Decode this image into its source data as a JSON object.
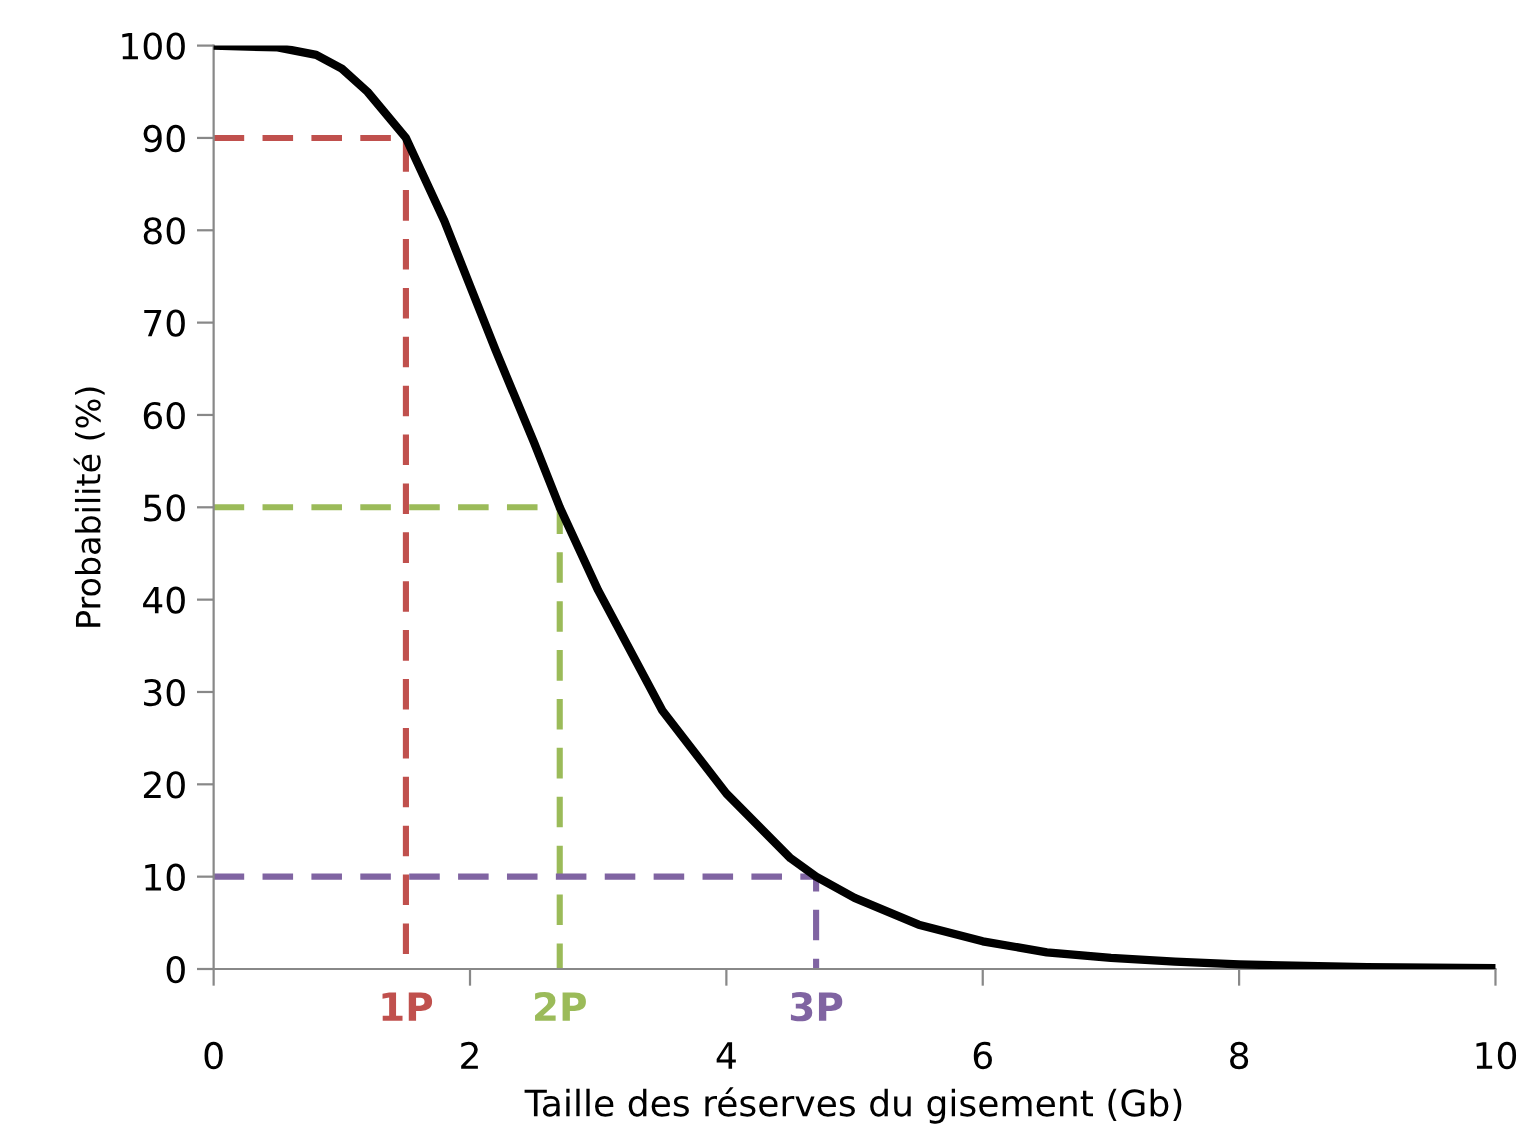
{
  "chart_data": {
    "type": "line",
    "xlabel": "Taille des réserves du gisement (Gb)",
    "ylabel": "Probabilité (%)",
    "xlim": [
      0,
      10
    ],
    "xticks": [
      0,
      2,
      4,
      6,
      8,
      10
    ],
    "ylim": [
      0,
      100
    ],
    "yticks": [
      0,
      10,
      20,
      30,
      40,
      50,
      60,
      70,
      80,
      90,
      100
    ],
    "grid": false,
    "legend": false,
    "marker": "none",
    "series": [
      {
        "color": "#000000",
        "line_style": "solid",
        "x": [
          0,
          0.5,
          0.8,
          1.0,
          1.2,
          1.5,
          1.8,
          2.0,
          2.2,
          2.5,
          2.7,
          3.0,
          3.5,
          4.0,
          4.5,
          4.7,
          5.0,
          5.5,
          6.0,
          6.5,
          7.0,
          7.5,
          8.0,
          9.0,
          10.0
        ],
        "values": [
          100,
          99.8,
          99,
          97.5,
          95,
          90,
          81,
          74,
          67,
          57,
          50,
          41,
          28,
          19,
          12,
          10,
          7.7,
          4.8,
          3,
          1.8,
          1.2,
          0.8,
          0.5,
          0.2,
          0.1
        ]
      },
      {
        "color": "#c0504d",
        "line_style": "dashed",
        "x": [
          0,
          1.5,
          1.5
        ],
        "values": [
          90,
          90,
          0
        ]
      },
      {
        "color": "#9bbb59",
        "line_style": "dashed",
        "x": [
          0,
          2.7,
          2.7
        ],
        "values": [
          50,
          50,
          0
        ]
      },
      {
        "color": "#8064a2",
        "line_style": "dashed",
        "x": [
          0,
          4.7,
          4.7
        ],
        "values": [
          10,
          10,
          0
        ]
      }
    ],
    "annotations": [
      {
        "text": "1P",
        "x": 1.5,
        "y": 0
      },
      {
        "text": "2P",
        "x": 2.7,
        "y": 0
      },
      {
        "text": "3P",
        "x": 4.7,
        "y": 0
      }
    ]
  }
}
